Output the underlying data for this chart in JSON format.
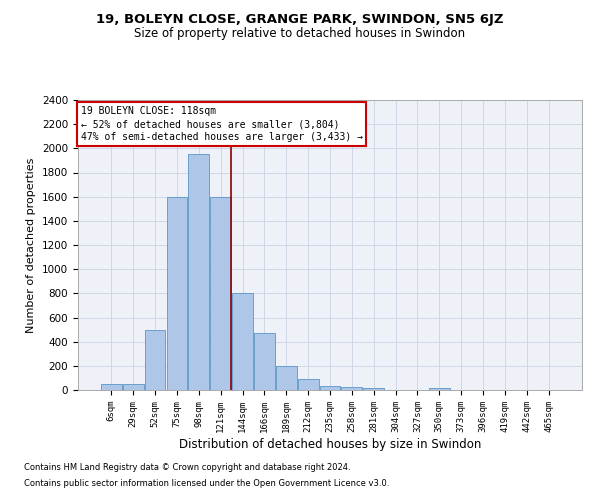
{
  "title1": "19, BOLEYN CLOSE, GRANGE PARK, SWINDON, SN5 6JZ",
  "title2": "Size of property relative to detached houses in Swindon",
  "xlabel": "Distribution of detached houses by size in Swindon",
  "ylabel": "Number of detached properties",
  "footnote1": "Contains HM Land Registry data © Crown copyright and database right 2024.",
  "footnote2": "Contains public sector information licensed under the Open Government Licence v3.0.",
  "categories": [
    "6sqm",
    "29sqm",
    "52sqm",
    "75sqm",
    "98sqm",
    "121sqm",
    "144sqm",
    "166sqm",
    "189sqm",
    "212sqm",
    "235sqm",
    "258sqm",
    "281sqm",
    "304sqm",
    "327sqm",
    "350sqm",
    "373sqm",
    "396sqm",
    "419sqm",
    "442sqm",
    "465sqm"
  ],
  "values": [
    50,
    50,
    500,
    1600,
    1950,
    1600,
    800,
    475,
    200,
    90,
    30,
    25,
    18,
    0,
    0,
    15,
    0,
    0,
    0,
    0,
    0
  ],
  "bar_color": "#aec6e8",
  "bar_edge_color": "#5a96c8",
  "vline_color": "#8b0000",
  "vline_x_index": 5,
  "annotation_text": "19 BOLEYN CLOSE: 118sqm\n← 52% of detached houses are smaller (3,804)\n47% of semi-detached houses are larger (3,433) →",
  "annotation_box_color": "#ffffff",
  "annotation_box_edge": "#cc0000",
  "ylim": [
    0,
    2400
  ],
  "yticks": [
    0,
    200,
    400,
    600,
    800,
    1000,
    1200,
    1400,
    1600,
    1800,
    2000,
    2200,
    2400
  ],
  "grid_color": "#d0d8e8",
  "bg_color": "#eef2f8"
}
